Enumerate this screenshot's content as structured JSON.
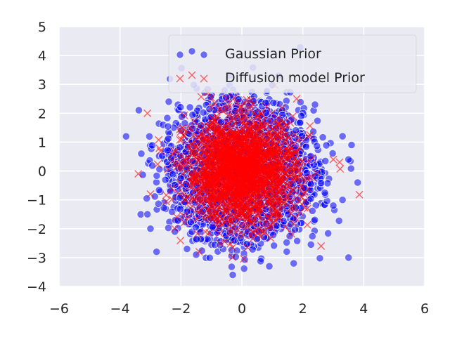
{
  "chart_data": {
    "type": "scatter",
    "title": "",
    "xlabel": "",
    "ylabel": "",
    "xlim": [
      -6,
      6
    ],
    "ylim": [
      -4,
      5
    ],
    "xticks": [
      -6,
      -4,
      -2,
      0,
      2,
      4,
      6
    ],
    "yticks": [
      -4,
      -3,
      -2,
      -1,
      0,
      1,
      2,
      3,
      4,
      5
    ],
    "grid": true,
    "style": "seaborn-darkgrid",
    "legend": {
      "placement": "top-right"
    },
    "series": [
      {
        "name": "Gaussian Prior",
        "marker": "circle",
        "color": "#0000ff",
        "alpha": 0.55,
        "point_count": 5000,
        "distribution": "gaussian",
        "mean": [
          0,
          0
        ],
        "std": [
          1,
          1
        ],
        "sample_points": [
          {
            "x": -3.8,
            "y": 1.2
          },
          {
            "x": -3.3,
            "y": 0.6
          },
          {
            "x": -2.8,
            "y": -2.8
          },
          {
            "x": -1.8,
            "y": -2.7
          },
          {
            "x": -1.5,
            "y": -2.9
          },
          {
            "x": -0.3,
            "y": -3.6
          },
          {
            "x": 0.9,
            "y": -3.3
          },
          {
            "x": 1.7,
            "y": -3.2
          },
          {
            "x": 3.5,
            "y": -3.0
          },
          {
            "x": 3.5,
            "y": 0.4
          },
          {
            "x": 3.8,
            "y": -0.4
          },
          {
            "x": 3.6,
            "y": 0.9
          },
          {
            "x": 3.0,
            "y": -1.2
          },
          {
            "x": -3.0,
            "y": -2.0
          },
          {
            "x": -3.1,
            "y": -1.5
          },
          {
            "x": -2.4,
            "y": 2.4
          },
          {
            "x": 2.4,
            "y": 2.3
          },
          {
            "x": -2.2,
            "y": -2.1
          }
        ]
      },
      {
        "name": "Diffusion model Prior",
        "marker": "x",
        "color": "#ff0000",
        "alpha": 0.6,
        "point_count": 2000,
        "distribution": "gaussian",
        "mean": [
          0,
          0
        ],
        "std": [
          0.9,
          0.9
        ],
        "sample_points": [
          {
            "x": -3.4,
            "y": -0.1
          },
          {
            "x": -3.1,
            "y": 2.0
          },
          {
            "x": -3.0,
            "y": -0.8
          },
          {
            "x": -2.2,
            "y": -2.0
          },
          {
            "x": -1.4,
            "y": -2.8
          },
          {
            "x": 2.6,
            "y": -2.6
          },
          {
            "x": 3.0,
            "y": 0.4
          },
          {
            "x": 1.8,
            "y": 2.5
          },
          {
            "x": 1.6,
            "y": -1.3
          }
        ]
      }
    ]
  }
}
